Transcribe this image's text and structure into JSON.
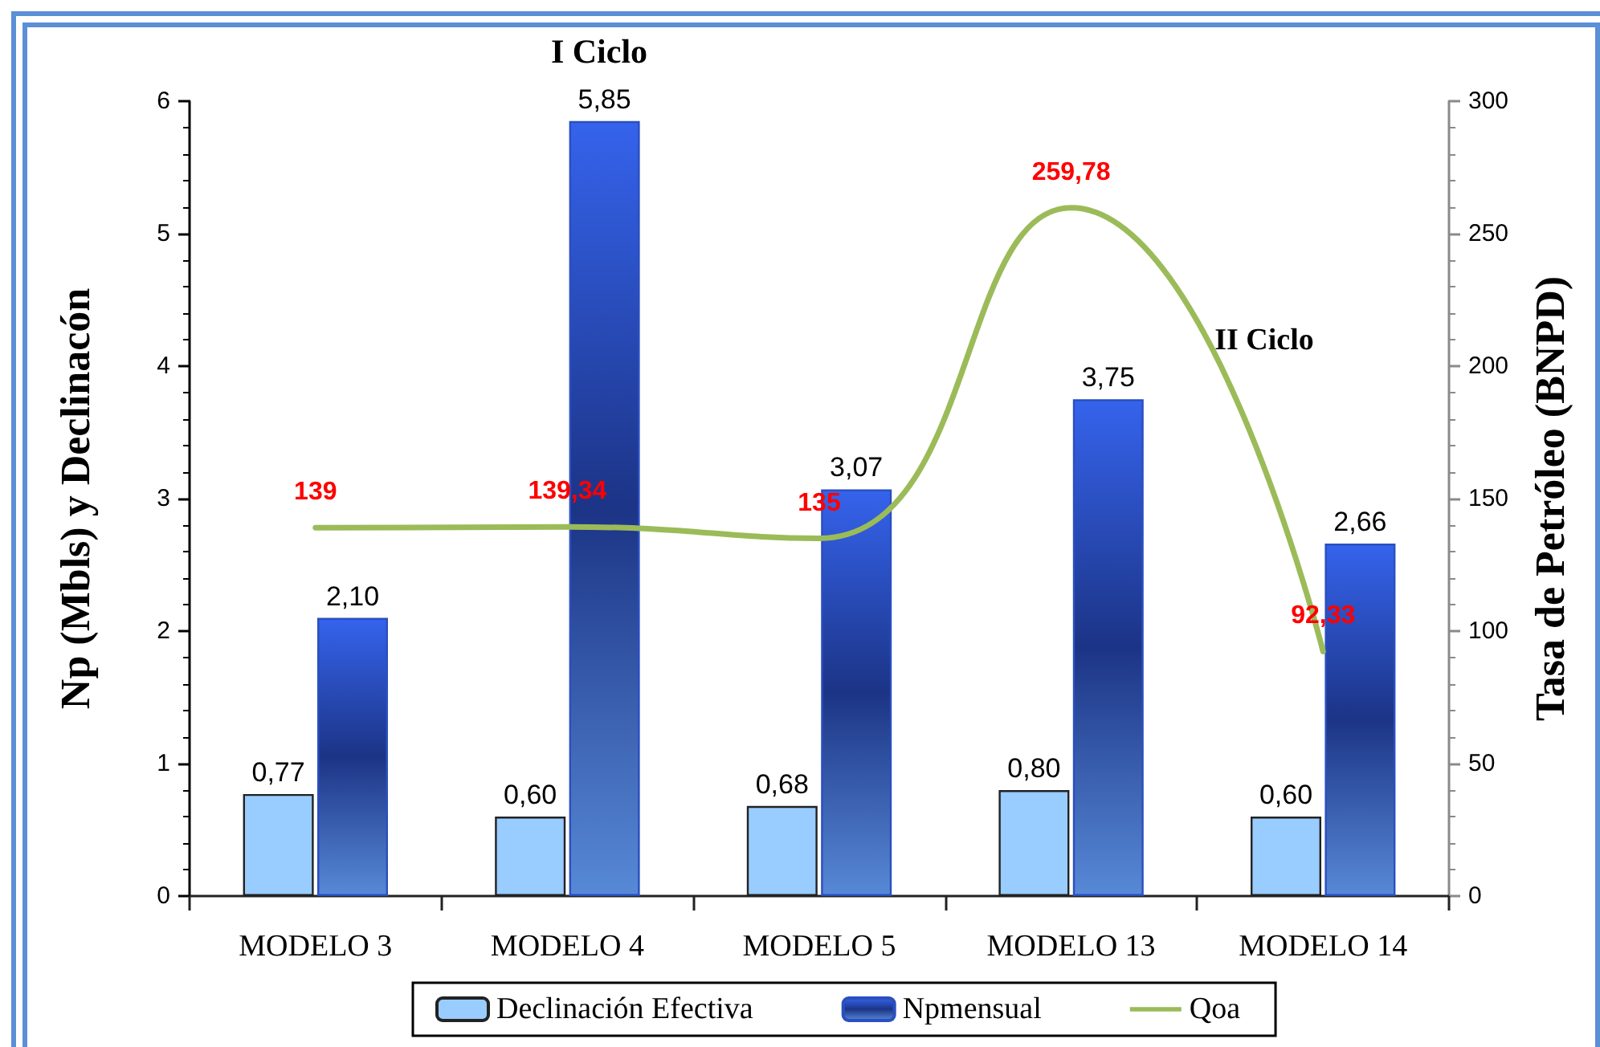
{
  "chart_data": {
    "type": "bar",
    "categories": [
      "MODELO 3",
      "MODELO 4",
      "MODELO 5",
      "MODELO 13",
      "MODELO 14"
    ],
    "series": [
      {
        "name": "Declinación Efectiva",
        "color": "#99ccff",
        "values": [
          0.77,
          0.6,
          0.68,
          0.8,
          0.6
        ],
        "value_labels": [
          "0,77",
          "0,60",
          "0,68",
          "0,80",
          "0,60"
        ]
      },
      {
        "name": "Npmensual",
        "color": "#2a4fc0",
        "values": [
          2.1,
          5.85,
          3.07,
          3.75,
          2.66
        ],
        "value_labels": [
          "2,10",
          "5,85",
          "3,07",
          "3,75",
          "2,66"
        ]
      },
      {
        "name": "Qoa",
        "type": "line",
        "axis": "y2",
        "color": "#9bbb59",
        "values": [
          139,
          139.34,
          135,
          259.78,
          92.33
        ],
        "value_labels": [
          "139",
          "139,34",
          "135",
          "259,78",
          "92,33"
        ]
      }
    ],
    "ylabel": "Np (Mbls) y Declinacón",
    "y2label": "Tasa de Petróleo (BNPD)",
    "ylim": [
      0,
      6
    ],
    "yticks": [
      0,
      {
        "value": 0.2,
        "label": null
      },
      {
        "value": 0.4,
        "label": null
      },
      {
        "value": 0.6,
        "label": null
      },
      {
        "value": 0.8,
        "label": null
      },
      1,
      {
        "value": 1.2,
        "label": null
      },
      {
        "value": 1.4,
        "label": null
      },
      {
        "value": 1.6,
        "label": null
      },
      {
        "value": 1.8,
        "label": null
      },
      2,
      {
        "value": 2.2,
        "label": null
      },
      {
        "value": 2.4,
        "label": null
      },
      {
        "value": 2.6,
        "label": null
      },
      {
        "value": 2.8,
        "label": null
      },
      3,
      {
        "value": 3.2,
        "label": null
      },
      {
        "value": 3.4,
        "label": null
      },
      {
        "value": 3.6,
        "label": null
      },
      {
        "value": 3.8,
        "label": null
      },
      4,
      {
        "value": 4.2,
        "label": null
      },
      {
        "value": 4.4,
        "label": null
      },
      {
        "value": 4.6,
        "label": null
      },
      {
        "value": 4.8,
        "label": null
      },
      5,
      {
        "value": 5.2,
        "label": null
      },
      {
        "value": 5.4,
        "label": null
      },
      {
        "value": 5.6,
        "label": null
      },
      {
        "value": 5.8,
        "label": null
      },
      6
    ],
    "y2lim": [
      0,
      300
    ],
    "y2ticks": [
      0,
      {
        "value": 10,
        "label": null
      },
      {
        "value": 20,
        "label": null
      },
      {
        "value": 30,
        "label": null
      },
      {
        "value": 40,
        "label": null
      },
      50,
      {
        "value": 60,
        "label": null
      },
      {
        "value": 70,
        "label": null
      },
      {
        "value": 80,
        "label": null
      },
      {
        "value": 90,
        "label": null
      },
      100,
      {
        "value": 110,
        "label": null
      },
      {
        "value": 120,
        "label": null
      },
      {
        "value": 130,
        "label": null
      },
      {
        "value": 140,
        "label": null
      },
      150,
      {
        "value": 160,
        "label": null
      },
      {
        "value": 170,
        "label": null
      },
      {
        "value": 180,
        "label": null
      },
      {
        "value": 190,
        "label": null
      },
      200,
      {
        "value": 210,
        "label": null
      },
      {
        "value": 220,
        "label": null
      },
      {
        "value": 230,
        "label": null
      },
      {
        "value": 240,
        "label": null
      },
      250,
      {
        "value": 260,
        "label": null
      },
      {
        "value": 270,
        "label": null
      },
      {
        "value": 280,
        "label": null
      },
      {
        "value": 290,
        "label": null
      },
      300
    ],
    "annotations": [
      "I Ciclo",
      "II Ciclo"
    ],
    "legend": "bottom"
  }
}
